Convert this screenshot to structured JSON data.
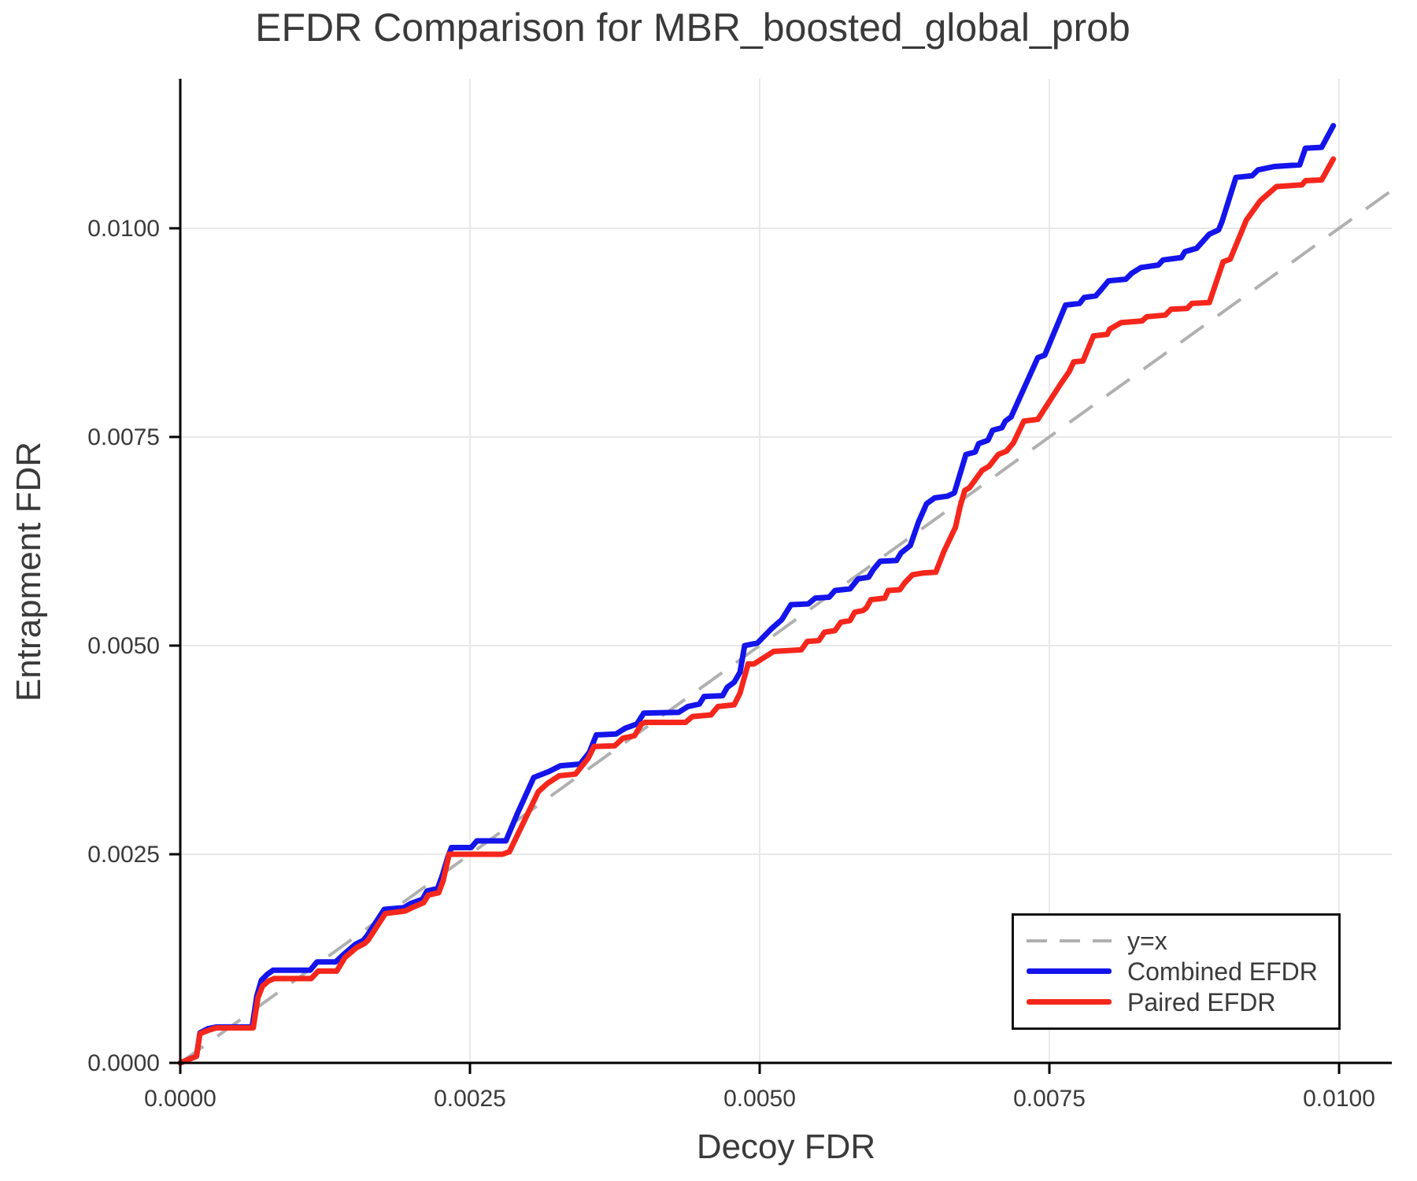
{
  "chart_data": {
    "type": "line",
    "title": "EFDR Comparison for MBR_boosted_global_prob",
    "xlabel": "Decoy FDR",
    "ylabel": "Entrapment FDR",
    "xlim": [
      0.0,
      0.010455
    ],
    "ylim": [
      0.0,
      0.011792
    ],
    "grid": true,
    "xticks": {
      "values": [
        0.0,
        0.0025,
        0.005,
        0.0075,
        0.01
      ],
      "labels": [
        "0.0000",
        "0.0025",
        "0.0050",
        "0.0075",
        "0.0100"
      ]
    },
    "yticks": {
      "values": [
        0.0,
        0.0025,
        0.005,
        0.0075,
        0.01
      ],
      "labels": [
        "0.0000",
        "0.0025",
        "0.0050",
        "0.0075",
        "0.0100"
      ]
    },
    "style": {
      "grid_color": "#e8e8e8",
      "spine_color": "#000000",
      "tick_text_color": "#3a3a3a",
      "background": "#ffffff"
    },
    "identity_line": {
      "label": "y=x",
      "from": [
        0.0,
        0.0
      ],
      "to": [
        0.010455,
        0.010455
      ],
      "color": "#b0b0b0",
      "dash": true
    },
    "legend": {
      "position": "bottom-right",
      "entries": [
        {
          "label": "y=x",
          "color": "#b0b0b0",
          "dash": true
        },
        {
          "label": "Combined EFDR",
          "color": "#1414eb",
          "dash": false
        },
        {
          "label": "Paired EFDR",
          "color": "#f5271c",
          "dash": false
        }
      ]
    },
    "series": [
      {
        "name": "Combined EFDR",
        "color": "#1414eb",
        "points": [
          [
            0.0,
            0.0
          ],
          [
            0.00014,
            8e-05
          ],
          [
            0.00017,
            0.00036
          ],
          [
            0.00024,
            0.00041
          ],
          [
            0.00031,
            0.00043
          ],
          [
            0.00062,
            0.00043
          ],
          [
            0.00066,
            0.0008
          ],
          [
            0.0007,
            0.00099
          ],
          [
            0.00075,
            0.00106
          ],
          [
            0.0008,
            0.00111
          ],
          [
            0.00112,
            0.00111
          ],
          [
            0.00118,
            0.00121
          ],
          [
            0.00134,
            0.00121
          ],
          [
            0.00141,
            0.0013
          ],
          [
            0.00151,
            0.00142
          ],
          [
            0.00158,
            0.00147
          ],
          [
            0.00161,
            0.00152
          ],
          [
            0.00176,
            0.00184
          ],
          [
            0.00193,
            0.00186
          ],
          [
            0.00199,
            0.00191
          ],
          [
            0.00209,
            0.00196
          ],
          [
            0.00213,
            0.00206
          ],
          [
            0.00222,
            0.00209
          ],
          [
            0.00226,
            0.00224
          ],
          [
            0.00231,
            0.00247
          ],
          [
            0.00234,
            0.00258
          ],
          [
            0.00251,
            0.00258
          ],
          [
            0.00256,
            0.00266
          ],
          [
            0.00281,
            0.00266
          ],
          [
            0.00291,
            0.00299
          ],
          [
            0.00305,
            0.00342
          ],
          [
            0.00318,
            0.00349
          ],
          [
            0.00328,
            0.00356
          ],
          [
            0.00345,
            0.00358
          ],
          [
            0.00353,
            0.00372
          ],
          [
            0.00359,
            0.00393
          ],
          [
            0.00376,
            0.00394
          ],
          [
            0.00384,
            0.00401
          ],
          [
            0.00394,
            0.00406
          ],
          [
            0.004,
            0.00419
          ],
          [
            0.0043,
            0.0042
          ],
          [
            0.00438,
            0.00427
          ],
          [
            0.00448,
            0.0043
          ],
          [
            0.00452,
            0.00439
          ],
          [
            0.00468,
            0.0044
          ],
          [
            0.00472,
            0.0045
          ],
          [
            0.00478,
            0.00456
          ],
          [
            0.00483,
            0.00468
          ],
          [
            0.00487,
            0.005
          ],
          [
            0.00498,
            0.00503
          ],
          [
            0.0051,
            0.0052
          ],
          [
            0.00519,
            0.00531
          ],
          [
            0.00527,
            0.00549
          ],
          [
            0.00542,
            0.0055
          ],
          [
            0.00548,
            0.00557
          ],
          [
            0.0056,
            0.00558
          ],
          [
            0.00565,
            0.00566
          ],
          [
            0.00578,
            0.00568
          ],
          [
            0.00585,
            0.0058
          ],
          [
            0.00594,
            0.00582
          ],
          [
            0.00598,
            0.00591
          ],
          [
            0.00604,
            0.00601
          ],
          [
            0.00618,
            0.00602
          ],
          [
            0.00622,
            0.00611
          ],
          [
            0.0063,
            0.0062
          ],
          [
            0.00637,
            0.00648
          ],
          [
            0.00644,
            0.0067
          ],
          [
            0.00651,
            0.00677
          ],
          [
            0.00662,
            0.00679
          ],
          [
            0.00668,
            0.00683
          ],
          [
            0.00678,
            0.00729
          ],
          [
            0.00686,
            0.00732
          ],
          [
            0.00689,
            0.00742
          ],
          [
            0.00697,
            0.00746
          ],
          [
            0.00701,
            0.00758
          ],
          [
            0.00709,
            0.00761
          ],
          [
            0.00712,
            0.00769
          ],
          [
            0.00717,
            0.00774
          ],
          [
            0.0074,
            0.00845
          ],
          [
            0.00746,
            0.00848
          ],
          [
            0.00764,
            0.00908
          ],
          [
            0.00776,
            0.0091
          ],
          [
            0.0078,
            0.00917
          ],
          [
            0.0079,
            0.00919
          ],
          [
            0.00795,
            0.00927
          ],
          [
            0.00801,
            0.00937
          ],
          [
            0.00816,
            0.00939
          ],
          [
            0.00821,
            0.00946
          ],
          [
            0.00829,
            0.00953
          ],
          [
            0.00844,
            0.00956
          ],
          [
            0.00848,
            0.00962
          ],
          [
            0.00864,
            0.00965
          ],
          [
            0.00867,
            0.00972
          ],
          [
            0.00877,
            0.00976
          ],
          [
            0.00888,
            0.00993
          ],
          [
            0.00896,
            0.00998
          ],
          [
            0.00899,
            0.01008
          ],
          [
            0.00911,
            0.01061
          ],
          [
            0.00925,
            0.01063
          ],
          [
            0.0093,
            0.0107
          ],
          [
            0.00944,
            0.01074
          ],
          [
            0.00966,
            0.01076
          ],
          [
            0.00971,
            0.01096
          ],
          [
            0.00985,
            0.01097
          ],
          [
            0.00995,
            0.01123
          ]
        ]
      },
      {
        "name": "Paired EFDR",
        "color": "#f5271c",
        "points": [
          [
            0.0,
            0.0
          ],
          [
            0.00014,
            8e-05
          ],
          [
            0.00017,
            0.00035
          ],
          [
            0.00024,
            0.00039
          ],
          [
            0.00031,
            0.00042
          ],
          [
            0.00063,
            0.00042
          ],
          [
            0.00067,
            0.00078
          ],
          [
            0.00071,
            0.00092
          ],
          [
            0.00076,
            0.00098
          ],
          [
            0.00081,
            0.00101
          ],
          [
            0.00113,
            0.00101
          ],
          [
            0.00119,
            0.0011
          ],
          [
            0.00135,
            0.0011
          ],
          [
            0.00142,
            0.00126
          ],
          [
            0.00152,
            0.00138
          ],
          [
            0.00159,
            0.00143
          ],
          [
            0.00162,
            0.00147
          ],
          [
            0.00177,
            0.00179
          ],
          [
            0.00194,
            0.00182
          ],
          [
            0.002,
            0.00186
          ],
          [
            0.0021,
            0.00192
          ],
          [
            0.00214,
            0.00201
          ],
          [
            0.00223,
            0.00204
          ],
          [
            0.00227,
            0.00219
          ],
          [
            0.00232,
            0.0025
          ],
          [
            0.00278,
            0.0025
          ],
          [
            0.00284,
            0.00253
          ],
          [
            0.003,
            0.00299
          ],
          [
            0.00309,
            0.00325
          ],
          [
            0.00317,
            0.00335
          ],
          [
            0.00327,
            0.00344
          ],
          [
            0.00341,
            0.00346
          ],
          [
            0.00352,
            0.00365
          ],
          [
            0.00357,
            0.00379
          ],
          [
            0.00375,
            0.0038
          ],
          [
            0.00382,
            0.00389
          ],
          [
            0.00392,
            0.00392
          ],
          [
            0.00398,
            0.00406
          ],
          [
            0.00401,
            0.00408
          ],
          [
            0.00436,
            0.00408
          ],
          [
            0.00442,
            0.00415
          ],
          [
            0.00458,
            0.00417
          ],
          [
            0.00464,
            0.00427
          ],
          [
            0.00478,
            0.00429
          ],
          [
            0.00483,
            0.00443
          ],
          [
            0.0049,
            0.00478
          ],
          [
            0.00495,
            0.00478
          ],
          [
            0.00512,
            0.00493
          ],
          [
            0.00536,
            0.00495
          ],
          [
            0.00541,
            0.00505
          ],
          [
            0.00551,
            0.00506
          ],
          [
            0.00556,
            0.00516
          ],
          [
            0.00565,
            0.00518
          ],
          [
            0.0057,
            0.00528
          ],
          [
            0.00578,
            0.0053
          ],
          [
            0.00582,
            0.0054
          ],
          [
            0.00589,
            0.00542
          ],
          [
            0.00592,
            0.00545
          ],
          [
            0.00596,
            0.00555
          ],
          [
            0.00608,
            0.00557
          ],
          [
            0.00611,
            0.00566
          ],
          [
            0.00621,
            0.00567
          ],
          [
            0.00625,
            0.00575
          ],
          [
            0.00632,
            0.00585
          ],
          [
            0.00641,
            0.00587
          ],
          [
            0.00652,
            0.00588
          ],
          [
            0.00659,
            0.00613
          ],
          [
            0.00669,
            0.00642
          ],
          [
            0.00673,
            0.00667
          ],
          [
            0.00677,
            0.00686
          ],
          [
            0.00681,
            0.00689
          ],
          [
            0.00692,
            0.0071
          ],
          [
            0.00698,
            0.00715
          ],
          [
            0.00706,
            0.00729
          ],
          [
            0.00713,
            0.00733
          ],
          [
            0.00719,
            0.00743
          ],
          [
            0.00728,
            0.00769
          ],
          [
            0.0074,
            0.00771
          ],
          [
            0.0076,
            0.00814
          ],
          [
            0.00767,
            0.00828
          ],
          [
            0.00771,
            0.0084
          ],
          [
            0.00779,
            0.00841
          ],
          [
            0.00788,
            0.00871
          ],
          [
            0.008,
            0.00873
          ],
          [
            0.00802,
            0.00879
          ],
          [
            0.00812,
            0.00887
          ],
          [
            0.0083,
            0.00889
          ],
          [
            0.00834,
            0.00894
          ],
          [
            0.0085,
            0.00896
          ],
          [
            0.00855,
            0.00903
          ],
          [
            0.00869,
            0.00904
          ],
          [
            0.00873,
            0.0091
          ],
          [
            0.00888,
            0.00911
          ],
          [
            0.009,
            0.0096
          ],
          [
            0.00906,
            0.00963
          ],
          [
            0.0092,
            0.0101
          ],
          [
            0.00932,
            0.01033
          ],
          [
            0.00946,
            0.0105
          ],
          [
            0.00968,
            0.01052
          ],
          [
            0.00971,
            0.01057
          ],
          [
            0.00985,
            0.01058
          ],
          [
            0.00995,
            0.01083
          ]
        ]
      }
    ]
  }
}
